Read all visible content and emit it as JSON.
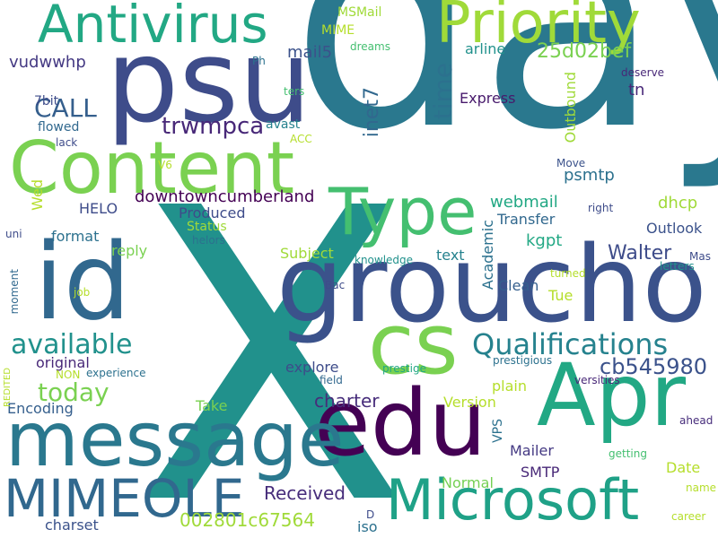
{
  "words": [
    {
      "text": "day",
      "color": "#2a788e"
    },
    {
      "text": "X",
      "color": "#21918c"
    },
    {
      "text": "psu",
      "color": "#3e4c8a"
    },
    {
      "text": "groucho",
      "color": "#3b528b"
    },
    {
      "text": "Content",
      "color": "#7ad151"
    },
    {
      "text": "id",
      "color": "#31688e"
    },
    {
      "text": "edu",
      "color": "#440154"
    },
    {
      "text": "message",
      "color": "#2a788e"
    },
    {
      "text": "Apr",
      "color": "#22a884"
    },
    {
      "text": "cs",
      "color": "#7ad151"
    },
    {
      "text": "Priority",
      "color": "#a0da39"
    },
    {
      "text": "Antivirus",
      "color": "#22a884"
    },
    {
      "text": "Type",
      "color": "#44bf70"
    },
    {
      "text": "Microsoft",
      "color": "#1fa187"
    },
    {
      "text": "MIMEOLE",
      "color": "#31688e"
    },
    {
      "text": "Qualifications",
      "color": "#26828e"
    },
    {
      "text": "available",
      "color": "#21918c"
    },
    {
      "text": "today",
      "color": "#7ad151"
    },
    {
      "text": "CALL",
      "color": "#355f8d"
    },
    {
      "text": "time",
      "color": "#2c718e"
    },
    {
      "text": "trwmpca",
      "color": "#482878"
    },
    {
      "text": "cb545980",
      "color": "#3b528b"
    },
    {
      "text": "inet7",
      "color": "#31688e"
    },
    {
      "text": "25d02bef",
      "color": "#7ad151"
    },
    {
      "text": "Walter",
      "color": "#3e4c8a"
    },
    {
      "text": "Received",
      "color": "#472d7b"
    },
    {
      "text": "002801c67564",
      "color": "#a0da39"
    },
    {
      "text": "charter",
      "color": "#472d7b"
    },
    {
      "text": "vudwwhp",
      "color": "#443983"
    },
    {
      "text": "mail5",
      "color": "#3b528b"
    },
    {
      "text": "downtowncumberland",
      "color": "#440154"
    },
    {
      "text": "webmail",
      "color": "#22a884"
    },
    {
      "text": "psmtp",
      "color": "#2c718e"
    },
    {
      "text": "dhcp",
      "color": "#a0da39"
    },
    {
      "text": "kgpt",
      "color": "#22a884"
    },
    {
      "text": "tn",
      "color": "#482878"
    },
    {
      "text": "Express",
      "color": "#481a6c"
    },
    {
      "text": "HELO",
      "color": "#3e4c8a"
    },
    {
      "text": "reply",
      "color": "#7ad151"
    },
    {
      "text": "Outlook",
      "color": "#3b528b"
    },
    {
      "text": "Mailer",
      "color": "#443983"
    },
    {
      "text": "SMTP",
      "color": "#482878"
    },
    {
      "text": "Normal",
      "color": "#75d054"
    },
    {
      "text": "Version",
      "color": "#b5de2b"
    },
    {
      "text": "Encoding",
      "color": "#355f8d"
    },
    {
      "text": "original",
      "color": "#482878"
    },
    {
      "text": "explore",
      "color": "#3e4c8a"
    },
    {
      "text": "Take",
      "color": "#7ad151"
    },
    {
      "text": "Tue",
      "color": "#b5de2b"
    },
    {
      "text": "plain",
      "color": "#b5de2b"
    },
    {
      "text": "text",
      "color": "#26828e"
    },
    {
      "text": "Clean",
      "color": "#355f8d"
    },
    {
      "text": "Transfer",
      "color": "#31688e"
    },
    {
      "text": "Academic",
      "color": "#2c718e"
    },
    {
      "text": "Subject",
      "color": "#a0da39"
    },
    {
      "text": "format",
      "color": "#2c718e"
    },
    {
      "text": "Produced",
      "color": "#3e4c8a"
    },
    {
      "text": "Status",
      "color": "#a0da39"
    },
    {
      "text": "Wed",
      "color": "#b5de2b"
    },
    {
      "text": "Date",
      "color": "#b5de2b"
    },
    {
      "text": "charset",
      "color": "#3b528b"
    },
    {
      "text": "iso",
      "color": "#2c718e"
    },
    {
      "text": "VPS",
      "color": "#2c718e"
    },
    {
      "text": "Outbound",
      "color": "#a0da39"
    },
    {
      "text": "arline",
      "color": "#21918c"
    },
    {
      "text": "MSMail",
      "color": "#a0da39"
    },
    {
      "text": "MIME",
      "color": "#b5de2b"
    },
    {
      "text": "7bit",
      "color": "#3e4c8a"
    },
    {
      "text": "flowed",
      "color": "#31688e"
    },
    {
      "text": "avast",
      "color": "#26828e"
    },
    {
      "text": "deserve",
      "color": "#482878"
    },
    {
      "text": "Ph",
      "color": "#2c718e"
    },
    {
      "text": "ters",
      "color": "#44bf70"
    },
    {
      "text": "dreams",
      "color": "#44bf70"
    },
    {
      "text": "ACC",
      "color": "#b5de2b"
    },
    {
      "text": "lack",
      "color": "#3e4c8a"
    },
    {
      "text": "V6",
      "color": "#b5de2b"
    },
    {
      "text": "Move",
      "color": "#3b528b"
    },
    {
      "text": "right",
      "color": "#3e4c8a"
    },
    {
      "text": "uni",
      "color": "#3e4c8a"
    },
    {
      "text": "helors",
      "color": "#2c718e"
    },
    {
      "text": "letters",
      "color": "#21918c"
    },
    {
      "text": "turned",
      "color": "#b5de2b"
    },
    {
      "text": "knowledge",
      "color": "#21918c"
    },
    {
      "text": "Bac",
      "color": "#3e4c8a"
    },
    {
      "text": "Mas",
      "color": "#3e4c8a"
    },
    {
      "text": "job",
      "color": "#b5de2b"
    },
    {
      "text": "moment",
      "color": "#31688e"
    },
    {
      "text": "prestige",
      "color": "#22a884"
    },
    {
      "text": "prestigious",
      "color": "#2c718e"
    },
    {
      "text": "versities",
      "color": "#482878"
    },
    {
      "text": "ahead",
      "color": "#472d7b"
    },
    {
      "text": "getting",
      "color": "#44bf70"
    },
    {
      "text": "name",
      "color": "#b5de2b"
    },
    {
      "text": "career",
      "color": "#b5de2b"
    },
    {
      "text": "experience",
      "color": "#2c718e"
    },
    {
      "text": "NON",
      "color": "#b5de2b"
    },
    {
      "text": "field",
      "color": "#31688e"
    },
    {
      "text": "REDITED",
      "color": "#b5de2b"
    },
    {
      "text": "D",
      "color": "#3e4c8a"
    }
  ]
}
